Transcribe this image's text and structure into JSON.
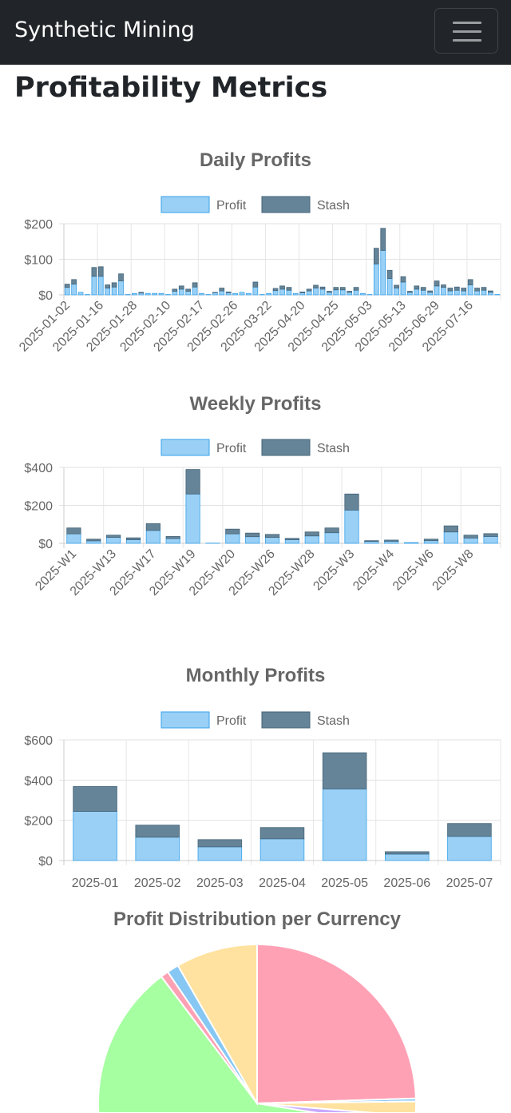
{
  "navbar": {
    "brand": "Synthetic Mining",
    "toggler_icon": "hamburger-menu-icon"
  },
  "page_title": "Profitability Metrics",
  "colors": {
    "profit_fill": "#9ad0f5",
    "profit_border": "#36a2eb",
    "stash_fill": "#658497",
    "stash_border": "#44647a",
    "navbar_bg": "#212529"
  },
  "chart_data": [
    {
      "type": "bar",
      "stacked": true,
      "title": "Daily Profits",
      "legend": {
        "position": "top",
        "items": [
          "Profit",
          "Stash"
        ]
      },
      "ylim": [
        0,
        200
      ],
      "y_ticks": [
        "$0",
        "$100",
        "$200"
      ],
      "y_tick_values": [
        0,
        100,
        200
      ],
      "x_tick_labels": [
        "2025-01-02",
        "2025-01-16",
        "2025-01-28",
        "2025-02-10",
        "2025-02-17",
        "2025-02-26",
        "2025-03-22",
        "2025-04-20",
        "2025-04-25",
        "2025-05-03",
        "2025-05-13",
        "2025-06-29",
        "2025-07-16"
      ],
      "x_tick_every": 5,
      "grid": true,
      "series": [
        {
          "name": "Profit",
          "values": [
            21,
            30,
            7,
            1,
            52,
            52,
            19,
            22,
            39,
            1,
            4,
            5,
            4,
            4,
            4,
            1,
            10,
            16,
            10,
            22,
            4,
            1,
            6,
            11,
            6,
            4,
            7,
            4,
            22,
            1,
            4,
            12,
            16,
            13,
            4,
            6,
            11,
            19,
            16,
            7,
            14,
            14,
            7,
            13,
            4,
            1,
            87,
            125,
            46,
            19,
            36,
            7,
            16,
            13,
            7,
            25,
            21,
            11,
            13,
            11,
            28,
            11,
            13,
            7,
            1
          ]
        },
        {
          "name": "Stash",
          "values": [
            9,
            13,
            0,
            0,
            25,
            27,
            9,
            12,
            20,
            0,
            0,
            2,
            0,
            0,
            0,
            0,
            6,
            9,
            6,
            12,
            0,
            0,
            1,
            8,
            2,
            0,
            0,
            0,
            14,
            0,
            0,
            6,
            9,
            8,
            0,
            2,
            5,
            8,
            6,
            3,
            7,
            7,
            3,
            8,
            0,
            0,
            44,
            62,
            23,
            8,
            15,
            3,
            9,
            8,
            4,
            14,
            7,
            8,
            9,
            8,
            15,
            8,
            8,
            4,
            0
          ]
        }
      ]
    },
    {
      "type": "bar",
      "stacked": true,
      "title": "Weekly Profits",
      "legend": {
        "position": "top",
        "items": [
          "Profit",
          "Stash"
        ]
      },
      "ylim": [
        0,
        400
      ],
      "y_ticks": [
        "$0",
        "$200",
        "$400"
      ],
      "y_tick_values": [
        0,
        200,
        400
      ],
      "x_tick_labels": [
        "2025-W1",
        "2025-W13",
        "2025-W17",
        "2025-W19",
        "2025-W20",
        "2025-W26",
        "2025-W28",
        "2025-W3",
        "2025-W4",
        "2025-W6",
        "2025-W8"
      ],
      "x_tick_every": 2,
      "grid": true,
      "series": [
        {
          "name": "Profit",
          "values": [
            50,
            13,
            31,
            19,
            68,
            25,
            260,
            1,
            50,
            35,
            31,
            19,
            39,
            56,
            175,
            10,
            11,
            4,
            14,
            60,
            28,
            36
          ]
        },
        {
          "name": "Stash",
          "values": [
            31,
            9,
            12,
            10,
            36,
            11,
            129,
            0,
            25,
            19,
            16,
            7,
            21,
            25,
            85,
            4,
            6,
            0,
            8,
            32,
            15,
            15
          ]
        }
      ]
    },
    {
      "type": "bar",
      "stacked": true,
      "title": "Monthly Profits",
      "legend": {
        "position": "top",
        "items": [
          "Profit",
          "Stash"
        ]
      },
      "ylim": [
        0,
        600
      ],
      "y_ticks": [
        "$0",
        "$200",
        "$400",
        "$600"
      ],
      "y_tick_values": [
        0,
        200,
        400,
        600
      ],
      "x_tick_labels": [
        "2025-01",
        "2025-02",
        "2025-03",
        "2025-04",
        "2025-05",
        "2025-06",
        "2025-07"
      ],
      "x_tick_every": 1,
      "grid": true,
      "series": [
        {
          "name": "Profit",
          "values": [
            244,
            116,
            68,
            108,
            356,
            32,
            120
          ]
        },
        {
          "name": "Stash",
          "values": [
            124,
            60,
            36,
            56,
            180,
            12,
            64
          ]
        }
      ]
    },
    {
      "type": "pie",
      "title": "Profit Distribution per Currency",
      "values": [
        24.5,
        0.3,
        1.5,
        1.2,
        62.2,
        0.8,
        1.2,
        8.3
      ],
      "colors": [
        "#ffa1b5",
        "#86c7f3",
        "#ffe29f",
        "#c8aaff",
        "#a6ffa1",
        "#ffa1b5",
        "#86c7f3",
        "#ffe29f"
      ]
    }
  ]
}
